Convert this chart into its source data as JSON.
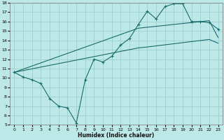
{
  "xlabel": "Humidex (Indice chaleur)",
  "xlim": [
    -0.5,
    23.5
  ],
  "ylim": [
    5,
    18
  ],
  "xticks": [
    0,
    1,
    2,
    3,
    4,
    5,
    6,
    7,
    8,
    9,
    10,
    11,
    12,
    13,
    14,
    15,
    16,
    17,
    18,
    19,
    20,
    21,
    22,
    23
  ],
  "yticks": [
    5,
    6,
    7,
    8,
    9,
    10,
    11,
    12,
    13,
    14,
    15,
    16,
    17,
    18
  ],
  "bg_color": "#bde8e8",
  "line_color": "#1a6b6b",
  "grid_color": "#9dcece",
  "curve1_x": [
    0,
    1,
    2,
    3,
    4,
    5,
    6,
    7,
    8,
    9,
    10,
    11,
    12,
    13,
    14,
    15,
    16,
    17,
    18,
    19,
    20,
    21,
    22,
    23
  ],
  "curve1_y": [
    10.6,
    10.1,
    9.8,
    9.4,
    7.8,
    7.0,
    6.8,
    5.2,
    9.8,
    12.0,
    11.7,
    12.3,
    13.5,
    14.2,
    15.7,
    17.1,
    16.3,
    17.6,
    17.9,
    17.9,
    16.0,
    16.0,
    15.9,
    15.2
  ],
  "line2_x": [
    0,
    14,
    15,
    22,
    23
  ],
  "line2_y": [
    10.6,
    15.3,
    15.4,
    16.1,
    14.3
  ],
  "line3_x": [
    0,
    14,
    15,
    22,
    23
  ],
  "line3_y": [
    10.6,
    13.2,
    13.3,
    14.1,
    13.7
  ]
}
